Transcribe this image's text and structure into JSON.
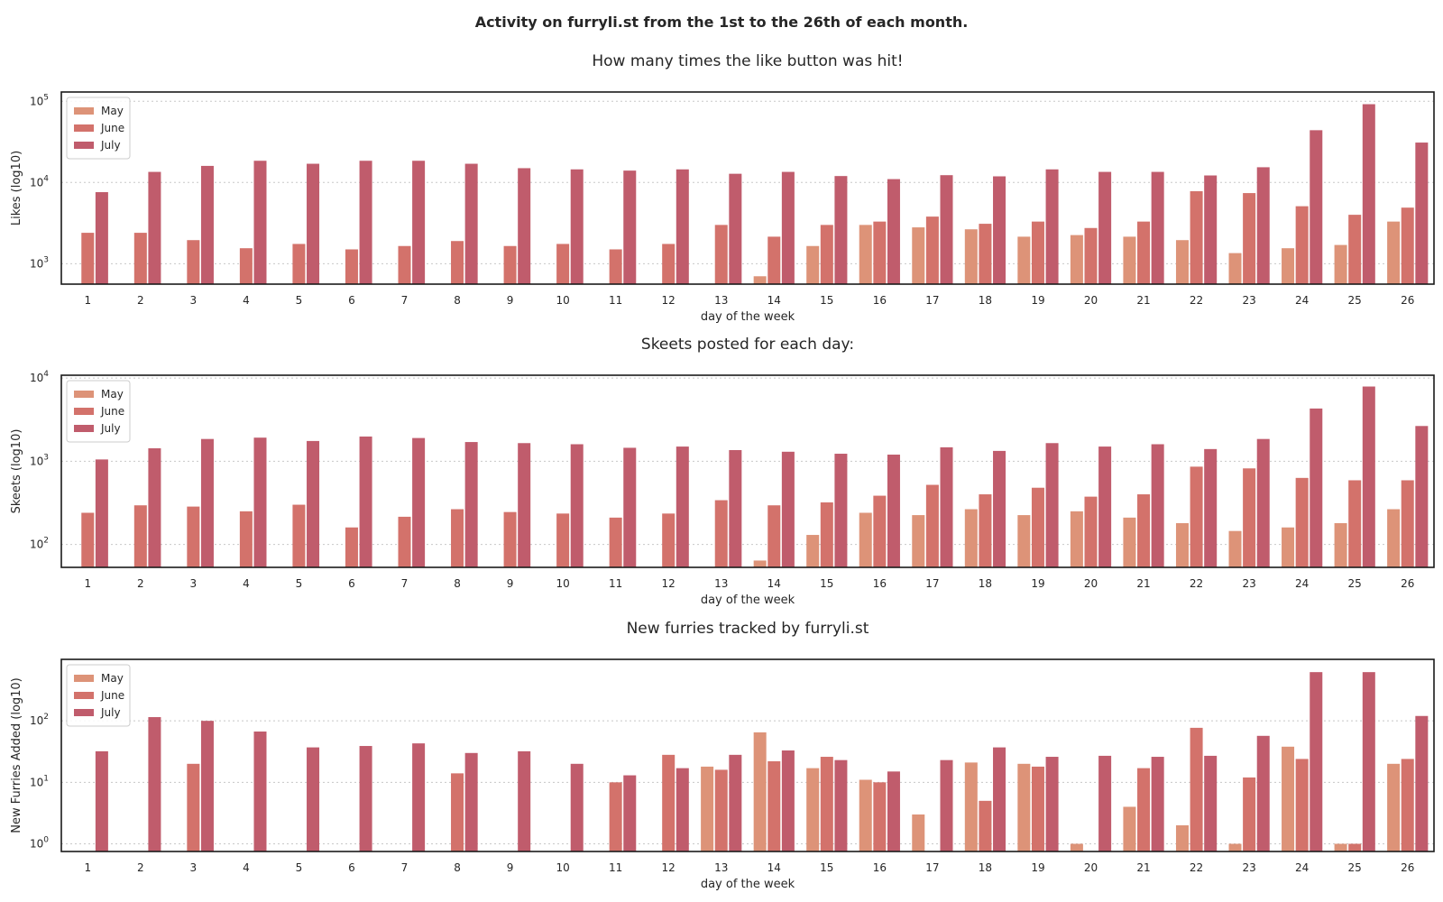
{
  "suptitle": "Activity on furryli.st from the 1st to the 26th of each month.",
  "colors": {
    "May": "#dd9378",
    "June": "#d3726b",
    "July": "#c05c6c"
  },
  "chart_data": [
    {
      "type": "bar",
      "title": "How many times the like button was hit!",
      "xlabel": "day of the week",
      "ylabel": "Likes (log10)",
      "yscale": "log",
      "ylim": [
        560,
        130000
      ],
      "yticks": [
        1000,
        10000,
        100000
      ],
      "ytick_exponents": [
        "3",
        "4",
        "5"
      ],
      "grid": "horizontal-dotted",
      "legend": "top-left",
      "categories": [
        "1",
        "2",
        "3",
        "4",
        "5",
        "6",
        "7",
        "8",
        "9",
        "10",
        "11",
        "12",
        "13",
        "14",
        "15",
        "16",
        "17",
        "18",
        "19",
        "20",
        "21",
        "22",
        "23",
        "24",
        "25",
        "26"
      ],
      "series": [
        {
          "name": "May",
          "values": [
            null,
            null,
            null,
            null,
            null,
            null,
            null,
            null,
            null,
            null,
            null,
            null,
            null,
            700,
            1650,
            3000,
            2800,
            2650,
            2150,
            2250,
            2150,
            1950,
            1350,
            1550,
            1700,
            3300
          ]
        },
        {
          "name": "June",
          "values": [
            2400,
            2400,
            1950,
            1550,
            1750,
            1500,
            1650,
            1900,
            1650,
            1750,
            1500,
            1750,
            3000,
            2150,
            3000,
            3300,
            3800,
            3100,
            3300,
            2750,
            3300,
            7800,
            7400,
            5100,
            4000,
            4900
          ]
        },
        {
          "name": "July",
          "values": [
            7600,
            13500,
            16000,
            18500,
            17000,
            18500,
            18500,
            17000,
            15000,
            14500,
            14000,
            14500,
            12800,
            13500,
            12000,
            11000,
            12300,
            11900,
            14500,
            13500,
            13500,
            12200,
            15400,
            44000,
            92000,
            31000
          ]
        }
      ]
    },
    {
      "type": "bar",
      "title": "Skeets posted for each day:",
      "xlabel": "day of the week",
      "ylabel": "Skeets (log10)",
      "yscale": "log",
      "ylim": [
        53,
        10800
      ],
      "yticks": [
        100,
        1000,
        10000
      ],
      "ytick_exponents": [
        "2",
        "3",
        "4"
      ],
      "grid": "horizontal-dotted",
      "legend": "top-left",
      "categories": [
        "1",
        "2",
        "3",
        "4",
        "5",
        "6",
        "7",
        "8",
        "9",
        "10",
        "11",
        "12",
        "13",
        "14",
        "15",
        "16",
        "17",
        "18",
        "19",
        "20",
        "21",
        "22",
        "23",
        "24",
        "25",
        "26"
      ],
      "series": [
        {
          "name": "May",
          "values": [
            null,
            null,
            null,
            null,
            null,
            null,
            null,
            null,
            null,
            null,
            null,
            null,
            null,
            64,
            130,
            240,
            225,
            265,
            225,
            250,
            210,
            180,
            145,
            160,
            180,
            265
          ]
        },
        {
          "name": "June",
          "values": [
            240,
            295,
            285,
            250,
            300,
            160,
            215,
            265,
            245,
            235,
            210,
            235,
            340,
            295,
            320,
            385,
            520,
            400,
            480,
            375,
            400,
            860,
            820,
            630,
            590,
            590
          ]
        },
        {
          "name": "July",
          "values": [
            1050,
            1430,
            1850,
            1920,
            1750,
            1980,
            1900,
            1700,
            1650,
            1600,
            1450,
            1500,
            1360,
            1300,
            1230,
            1200,
            1470,
            1330,
            1650,
            1500,
            1600,
            1400,
            1850,
            4300,
            7900,
            2650
          ]
        }
      ]
    },
    {
      "type": "bar",
      "title": "New furries tracked by furryli.st",
      "xlabel": "day of the week",
      "ylabel": "New Furries Added (log10)",
      "yscale": "log",
      "ylim": [
        0.75,
        1000
      ],
      "yticks": [
        1,
        10,
        100
      ],
      "ytick_exponents": [
        "0",
        "1",
        "2"
      ],
      "grid": "horizontal-dotted",
      "legend": "top-left",
      "categories": [
        "1",
        "2",
        "3",
        "4",
        "5",
        "6",
        "7",
        "8",
        "9",
        "10",
        "11",
        "12",
        "13",
        "14",
        "15",
        "16",
        "17",
        "18",
        "19",
        "20",
        "21",
        "22",
        "23",
        "24",
        "25",
        "26"
      ],
      "series": [
        {
          "name": "May",
          "values": [
            null,
            null,
            null,
            null,
            null,
            null,
            null,
            null,
            null,
            null,
            null,
            null,
            18,
            65,
            17,
            11,
            3,
            21,
            20,
            1,
            4,
            2,
            1,
            38,
            1,
            20
          ]
        },
        {
          "name": "June",
          "values": [
            null,
            null,
            20,
            null,
            null,
            null,
            null,
            14,
            null,
            null,
            10,
            28,
            16,
            22,
            26,
            10,
            null,
            5,
            18,
            null,
            17,
            77,
            12,
            24,
            1,
            24
          ]
        },
        {
          "name": "July",
          "values": [
            32,
            115,
            100,
            67,
            37,
            39,
            43,
            30,
            32,
            20,
            13,
            17,
            28,
            33,
            23,
            15,
            23,
            37,
            26,
            27,
            26,
            27,
            57,
            620,
            620,
            120
          ]
        }
      ]
    }
  ]
}
